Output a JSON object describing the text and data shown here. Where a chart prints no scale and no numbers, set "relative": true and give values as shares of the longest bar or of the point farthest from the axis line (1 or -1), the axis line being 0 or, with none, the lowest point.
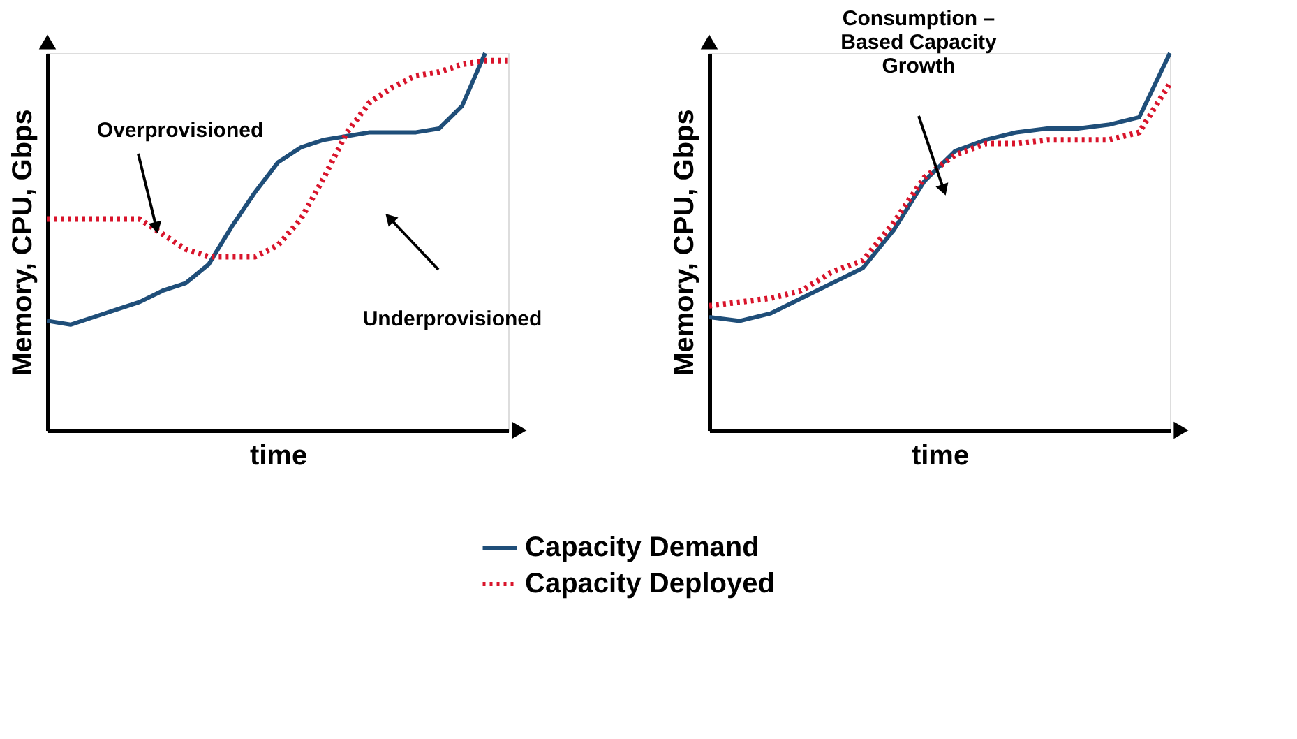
{
  "chart_data": [
    {
      "type": "line",
      "relative": true,
      "tick_labels": false,
      "grid": false,
      "legend": "bottom",
      "xlabel": "time",
      "ylabel": "Memory, CPU, Gbps",
      "categories": [
        null,
        null,
        null,
        null,
        null,
        null,
        null,
        null,
        null,
        null,
        null,
        null,
        null,
        null,
        null,
        null,
        null,
        null,
        null,
        null,
        null
      ],
      "series": [
        {
          "name": "Capacity Demand",
          "color": "#1f4e79",
          "line_style": "solid",
          "values": [
            0.29,
            0.28,
            0.3,
            0.32,
            0.34,
            0.37,
            0.39,
            0.44,
            0.54,
            0.63,
            0.71,
            0.75,
            0.77,
            0.78,
            0.79,
            0.79,
            0.79,
            0.8,
            0.86,
            1.0,
            null
          ]
        },
        {
          "name": "Capacity Deployed",
          "color": "#d9142b",
          "line_style": "dotted",
          "values": [
            0.56,
            0.56,
            0.56,
            0.56,
            0.56,
            0.52,
            0.48,
            0.46,
            0.46,
            0.46,
            0.49,
            0.56,
            0.67,
            0.79,
            0.87,
            0.91,
            0.94,
            0.95,
            0.97,
            0.98,
            0.98
          ]
        }
      ],
      "annotations": [
        "Overprovisioned",
        "Underprovisioned"
      ]
    },
    {
      "type": "line",
      "relative": true,
      "tick_labels": false,
      "grid": false,
      "legend": "bottom",
      "xlabel": "time",
      "ylabel": "Memory, CPU, Gbps",
      "categories": [
        null,
        null,
        null,
        null,
        null,
        null,
        null,
        null,
        null,
        null,
        null,
        null,
        null,
        null,
        null,
        null
      ],
      "series": [
        {
          "name": "Capacity Demand",
          "color": "#1f4e79",
          "line_style": "solid",
          "values": [
            0.3,
            0.29,
            0.31,
            0.35,
            0.39,
            0.43,
            0.53,
            0.66,
            0.74,
            0.77,
            0.79,
            0.8,
            0.8,
            0.81,
            0.83,
            1.0
          ]
        },
        {
          "name": "Capacity Deployed",
          "color": "#d9142b",
          "line_style": "dotted",
          "values": [
            0.33,
            0.34,
            0.35,
            0.37,
            0.42,
            0.45,
            0.55,
            0.67,
            0.73,
            0.76,
            0.76,
            0.77,
            0.77,
            0.77,
            0.79,
            0.92
          ]
        }
      ],
      "annotations": [
        "Consumption –\nBased Capacity\nGrowth"
      ]
    }
  ]
}
